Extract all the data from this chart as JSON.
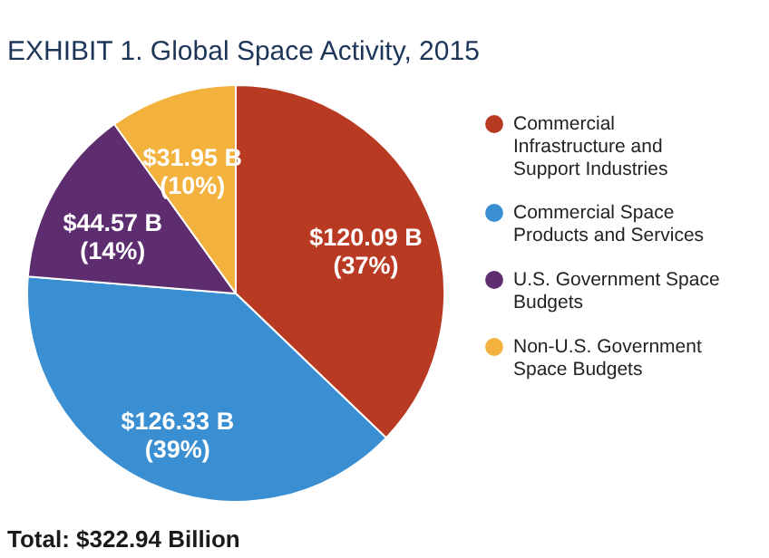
{
  "chart_data": {
    "type": "pie",
    "title": "EXHIBIT 1. Global Space Activity, 2015",
    "categories": [
      "Commercial Infrastructure and Support Industries",
      "Commercial Space Products and Services",
      "U.S. Government Space Budgets",
      "Non-U.S. Government Space Budgets"
    ],
    "values": [
      120.09,
      126.33,
      44.57,
      31.95
    ],
    "value_labels": [
      "$120.09 B\n(37%)",
      "$126.33 B\n(39%)",
      "$44.57 B\n(14%)",
      "$31.95 B\n(10%)"
    ],
    "colors": [
      "#b83a22",
      "#3a8fd3",
      "#5e2d70",
      "#f3b13d"
    ],
    "legend": "right",
    "annotations": [
      "Total: $322.94 Billion"
    ]
  }
}
